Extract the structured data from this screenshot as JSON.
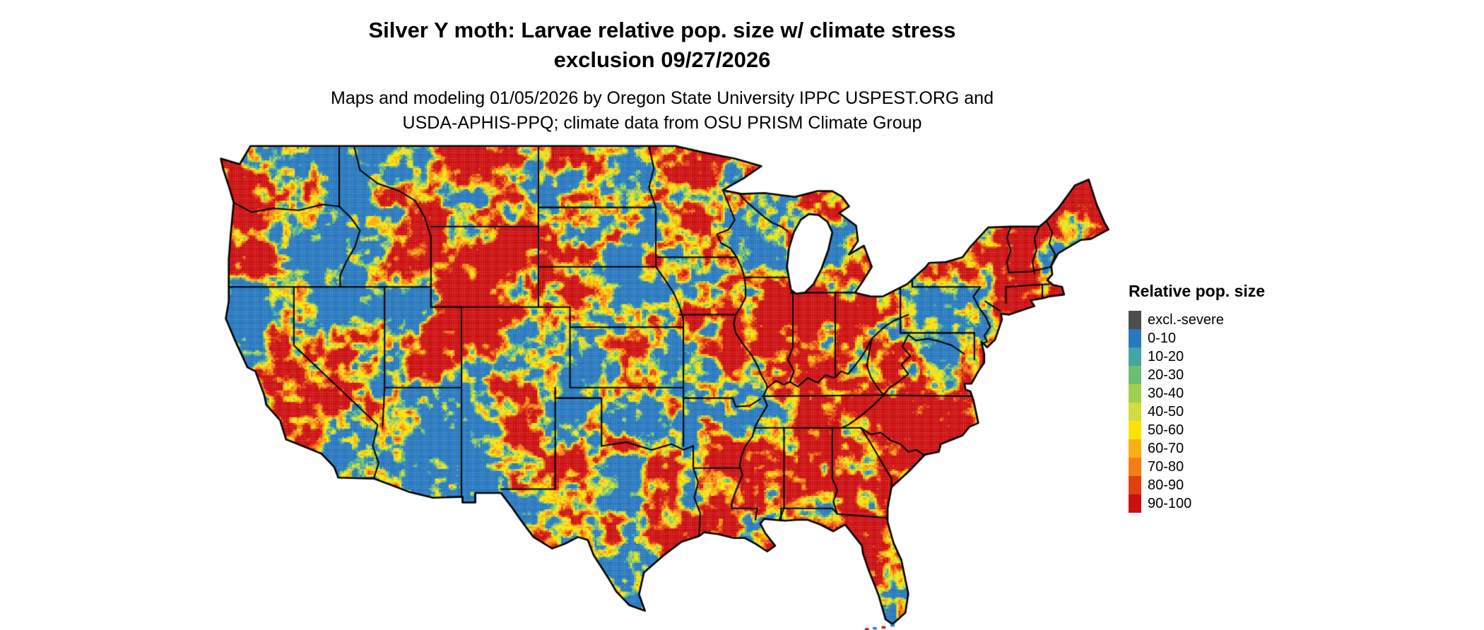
{
  "title": {
    "line1": "Silver Y moth: Larvae relative pop. size w/ climate stress",
    "line2": "exclusion 09/27/2026"
  },
  "subtitle": {
    "line1": "Maps and modeling 01/05/2026 by Oregon State University IPPC USPEST.ORG and",
    "line2": "USDA-APHIS-PPQ; climate data from OSU PRISM Climate Group"
  },
  "legend": {
    "title": "Relative pop. size",
    "items": [
      {
        "label": "excl.-severe",
        "color": "#4D4D4D"
      },
      {
        "label": "0-10",
        "color": "#2878BE"
      },
      {
        "label": "10-20",
        "color": "#44A5A5"
      },
      {
        "label": "20-30",
        "color": "#6CBE71"
      },
      {
        "label": "30-40",
        "color": "#A2CE4E"
      },
      {
        "label": "40-50",
        "color": "#D2DC40"
      },
      {
        "label": "50-60",
        "color": "#FBE306"
      },
      {
        "label": "60-70",
        "color": "#FCAE12"
      },
      {
        "label": "70-80",
        "color": "#F57D15"
      },
      {
        "label": "80-90",
        "color": "#E0400F"
      },
      {
        "label": "90-100",
        "color": "#CC0F10"
      }
    ]
  },
  "map": {
    "region": "contiguous-united-states",
    "outline_color": "#000000",
    "water_color": "#FFFFFF"
  }
}
